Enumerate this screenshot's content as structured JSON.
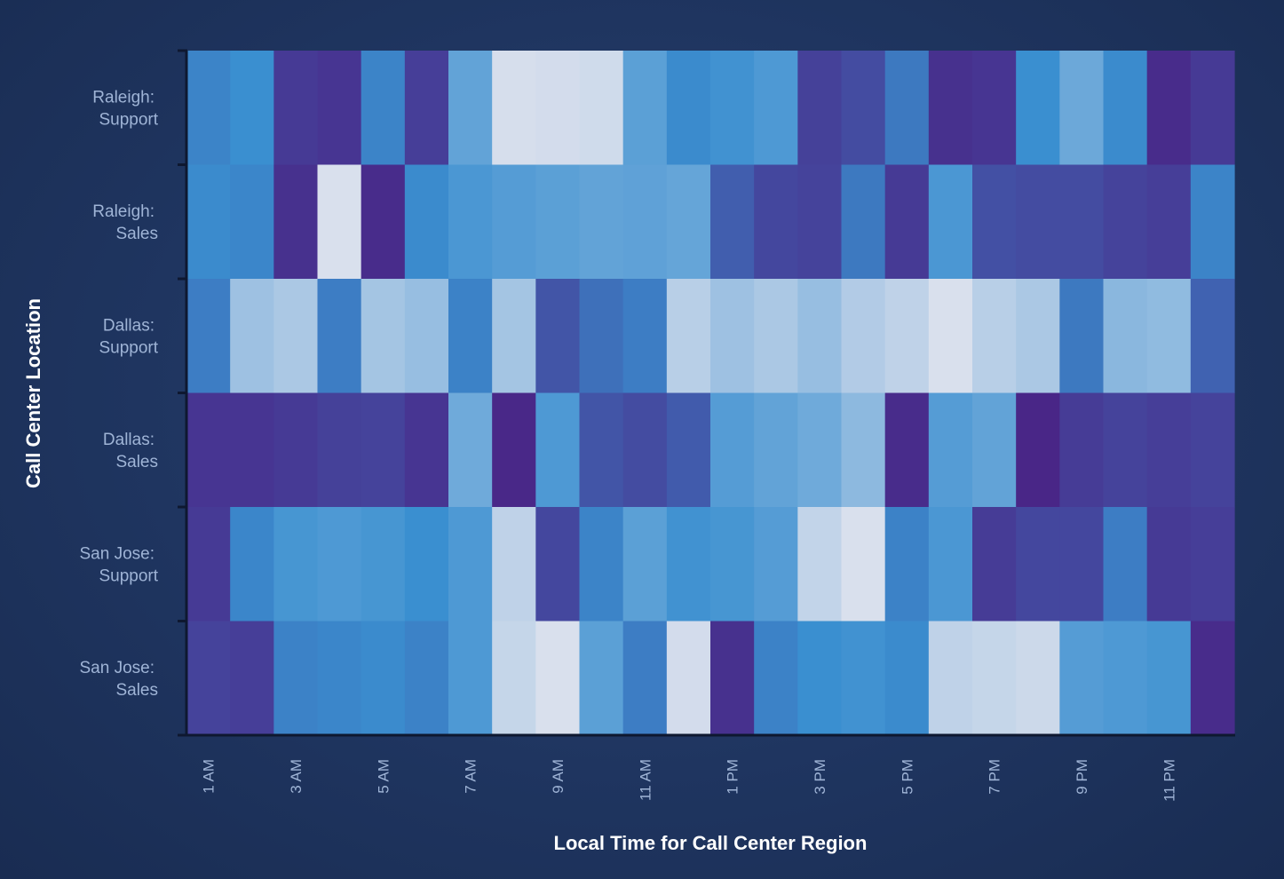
{
  "chart_data": {
    "type": "heatmap",
    "xlabel": "Local Time for Call Center Region",
    "ylabel": "Call Center Location",
    "x_ticks": [
      "1 AM",
      "3 AM",
      "5 AM",
      "7 AM",
      "9 AM",
      "11 AM",
      "1 PM",
      "3 PM",
      "5 PM",
      "7 PM",
      "9 PM",
      "11 PM"
    ],
    "rows": [
      {
        "line1": "Raleigh:",
        "line2": "Support"
      },
      {
        "line1": "Raleigh:",
        "line2": "Sales"
      },
      {
        "line1": "Dallas:",
        "line2": "Support"
      },
      {
        "line1": "Dallas:",
        "line2": "Sales"
      },
      {
        "line1": "San Jose:",
        "line2": "Support"
      },
      {
        "line1": "San Jose:",
        "line2": "Sales"
      }
    ],
    "color_scale": {
      "low": "#4a1f82",
      "mid": "#3a8fd0",
      "high": "#e0e3ee"
    },
    "values": [
      [
        0.45,
        0.5,
        0.12,
        0.1,
        0.45,
        0.14,
        0.62,
        0.97,
        0.96,
        0.95,
        0.6,
        0.48,
        0.52,
        0.56,
        0.15,
        0.2,
        0.4,
        0.08,
        0.1,
        0.5,
        0.65,
        0.48,
        0.06,
        0.12
      ],
      [
        0.48,
        0.46,
        0.08,
        0.98,
        0.06,
        0.48,
        0.55,
        0.58,
        0.6,
        0.62,
        0.61,
        0.63,
        0.28,
        0.18,
        0.16,
        0.4,
        0.12,
        0.55,
        0.22,
        0.2,
        0.2,
        0.16,
        0.14,
        0.45
      ],
      [
        0.42,
        0.8,
        0.84,
        0.42,
        0.82,
        0.78,
        0.44,
        0.82,
        0.24,
        0.36,
        0.42,
        0.88,
        0.8,
        0.84,
        0.78,
        0.86,
        0.9,
        0.98,
        0.88,
        0.84,
        0.4,
        0.74,
        0.76,
        0.3
      ],
      [
        0.1,
        0.1,
        0.12,
        0.15,
        0.16,
        0.1,
        0.66,
        0.04,
        0.56,
        0.24,
        0.2,
        0.27,
        0.58,
        0.62,
        0.66,
        0.75,
        0.06,
        0.58,
        0.62,
        0.03,
        0.13,
        0.16,
        0.14,
        0.16
      ],
      [
        0.12,
        0.46,
        0.54,
        0.56,
        0.54,
        0.5,
        0.56,
        0.9,
        0.18,
        0.45,
        0.6,
        0.52,
        0.54,
        0.58,
        0.91,
        0.98,
        0.44,
        0.55,
        0.13,
        0.18,
        0.18,
        0.42,
        0.12,
        0.14
      ],
      [
        0.16,
        0.14,
        0.44,
        0.46,
        0.48,
        0.44,
        0.56,
        0.92,
        0.98,
        0.6,
        0.42,
        0.96,
        0.08,
        0.44,
        0.5,
        0.52,
        0.48,
        0.9,
        0.92,
        0.94,
        0.58,
        0.56,
        0.54,
        0.06
      ]
    ]
  }
}
